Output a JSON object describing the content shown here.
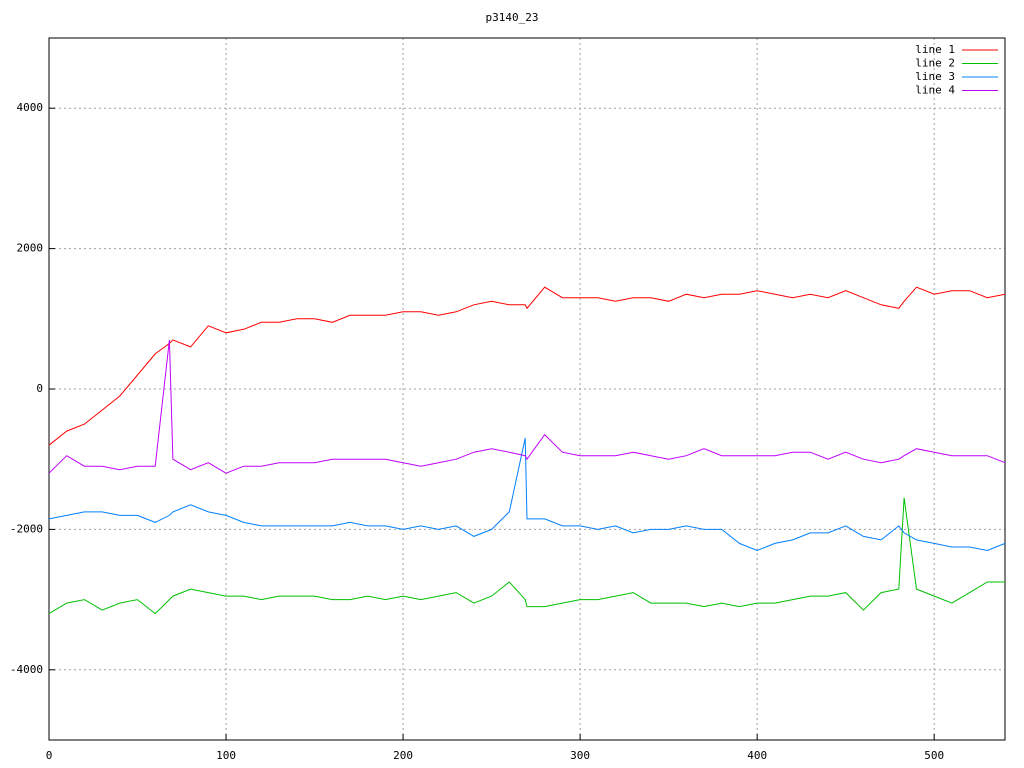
{
  "chart_data": {
    "type": "line",
    "title": "p3140_23",
    "x": [
      0,
      10,
      20,
      30,
      40,
      50,
      60,
      68,
      70,
      80,
      90,
      100,
      110,
      120,
      130,
      140,
      150,
      160,
      170,
      180,
      190,
      200,
      210,
      220,
      230,
      240,
      250,
      260,
      269,
      270,
      280,
      290,
      300,
      310,
      320,
      330,
      340,
      350,
      360,
      370,
      380,
      390,
      400,
      410,
      420,
      430,
      440,
      450,
      460,
      470,
      480,
      483,
      490,
      500,
      510,
      520,
      530,
      540
    ],
    "series": [
      {
        "name": "line 1",
        "color": "#ff0000",
        "values": [
          -800,
          -600,
          -500,
          -300,
          -100,
          200,
          500,
          650,
          700,
          600,
          900,
          800,
          850,
          950,
          950,
          1000,
          1000,
          950,
          1050,
          1050,
          1050,
          1100,
          1100,
          1050,
          1100,
          1200,
          1250,
          1200,
          1200,
          1150,
          1450,
          1300,
          1300,
          1300,
          1250,
          1300,
          1300,
          1250,
          1350,
          1300,
          1350,
          1350,
          1400,
          1350,
          1300,
          1350,
          1300,
          1400,
          1300,
          1200,
          1150,
          1250,
          1450,
          1350,
          1400,
          1400,
          1300,
          1350
        ]
      },
      {
        "name": "line 2",
        "color": "#00c000",
        "values": [
          -3200,
          -3050,
          -3000,
          -3150,
          -3050,
          -3000,
          -3200,
          -3000,
          -2950,
          -2850,
          -2900,
          -2950,
          -2950,
          -3000,
          -2950,
          -2950,
          -2950,
          -3000,
          -3000,
          -2950,
          -3000,
          -2950,
          -3000,
          -2950,
          -2900,
          -3050,
          -2950,
          -2750,
          -3000,
          -3100,
          -3100,
          -3050,
          -3000,
          -3000,
          -2950,
          -2900,
          -3050,
          -3050,
          -3050,
          -3100,
          -3050,
          -3100,
          -3050,
          -3050,
          -3000,
          -2950,
          -2950,
          -2900,
          -3150,
          -2900,
          -2850,
          -1550,
          -2850,
          -2950,
          -3050,
          -2900,
          -2750,
          -2750
        ]
      },
      {
        "name": "line 3",
        "color": "#0080ff",
        "values": [
          -1850,
          -1800,
          -1750,
          -1750,
          -1800,
          -1800,
          -1900,
          -1800,
          -1750,
          -1650,
          -1750,
          -1800,
          -1900,
          -1950,
          -1950,
          -1950,
          -1950,
          -1950,
          -1900,
          -1950,
          -1950,
          -2000,
          -1950,
          -2000,
          -1950,
          -2100,
          -2000,
          -1750,
          -700,
          -1850,
          -1850,
          -1950,
          -1950,
          -2000,
          -1950,
          -2050,
          -2000,
          -2000,
          -1950,
          -2000,
          -2000,
          -2200,
          -2300,
          -2200,
          -2150,
          -2050,
          -2050,
          -1950,
          -2100,
          -2150,
          -1950,
          -2050,
          -2150,
          -2200,
          -2250,
          -2250,
          -2300,
          -2200
        ]
      },
      {
        "name": "line 4",
        "color": "#c000ff",
        "values": [
          -1200,
          -950,
          -1100,
          -1100,
          -1150,
          -1100,
          -1100,
          700,
          -1000,
          -1150,
          -1050,
          -1200,
          -1100,
          -1100,
          -1050,
          -1050,
          -1050,
          -1000,
          -1000,
          -1000,
          -1000,
          -1050,
          -1100,
          -1050,
          -1000,
          -900,
          -850,
          -900,
          -950,
          -1000,
          -650,
          -900,
          -950,
          -950,
          -950,
          -900,
          -950,
          -1000,
          -950,
          -850,
          -950,
          -950,
          -950,
          -950,
          -900,
          -900,
          -1000,
          -900,
          -1000,
          -1050,
          -1000,
          -950,
          -850,
          -900,
          -950,
          -950,
          -950,
          -1050
        ]
      }
    ],
    "xlim": [
      0,
      540
    ],
    "xticks": [
      0,
      100,
      200,
      300,
      400,
      500
    ],
    "ylim": [
      -5000,
      5000
    ],
    "yticks": [
      -4000,
      -2000,
      0,
      2000,
      4000
    ],
    "grid": true,
    "legend": "top-right"
  }
}
